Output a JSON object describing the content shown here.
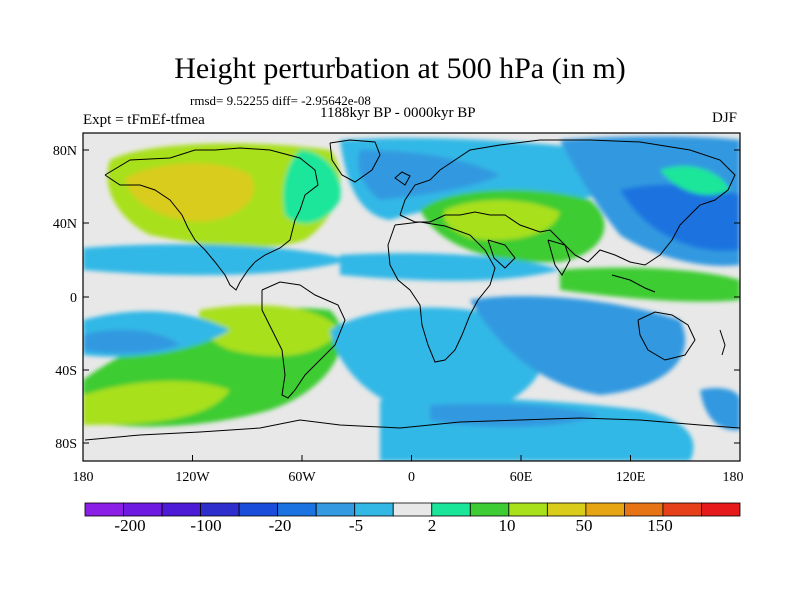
{
  "title": "Height perturbation at 500 hPa (in m)",
  "stats": "rmsd= 9.52255 diff= -2.95642e-08",
  "period": "1188kyr BP - 0000kyr BP",
  "experiment": "Expt = tFmEf-tfmea",
  "season": "DJF",
  "axes": {
    "y_ticks": [
      "80N",
      "40N",
      "0",
      "40S",
      "80S"
    ],
    "x_ticks": [
      "180",
      "120W",
      "60W",
      "0",
      "60E",
      "120E",
      "180"
    ]
  },
  "colorbar": {
    "colors": [
      "#8c1fe6",
      "#6e1ae0",
      "#4d1ad6",
      "#2e2ecc",
      "#1a4dd9",
      "#1a73e0",
      "#3399e0",
      "#33b8e6",
      "#e8e8e8",
      "#1ae699",
      "#3dcc33",
      "#a8e01a",
      "#d9cc1a",
      "#e6a614",
      "#e67314",
      "#e6401a",
      "#e61a1a"
    ],
    "labels": [
      "-200",
      "-100",
      "-20",
      "-5",
      "2",
      "10",
      "50",
      "150"
    ]
  }
}
